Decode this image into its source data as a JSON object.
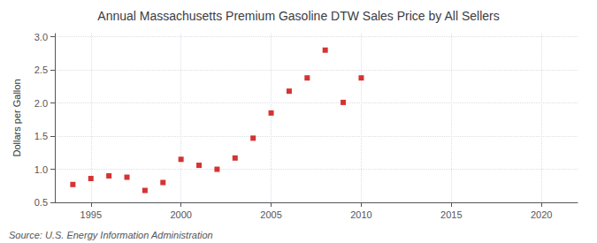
{
  "chart_data": {
    "type": "scatter",
    "title": "Annual Massachusetts Premium Gasoline DTW Sales Price by All Sellers",
    "ylabel": "Dollars per Gallon",
    "annotations": [
      "Source: U.S. Energy Information Administration"
    ],
    "x": [
      1994,
      1995,
      1996,
      1997,
      1998,
      1999,
      2000,
      2001,
      2002,
      2003,
      2004,
      2005,
      2006,
      2007,
      2008,
      2009,
      2010
    ],
    "values": [
      0.77,
      0.86,
      0.9,
      0.88,
      0.68,
      0.8,
      1.15,
      1.06,
      1.0,
      1.17,
      1.47,
      1.85,
      2.18,
      2.38,
      2.8,
      2.01,
      2.38
    ],
    "color": "#cc0000",
    "marker": "square",
    "xlim": [
      1993,
      2022
    ],
    "xticks": [
      1995,
      2000,
      2005,
      2010,
      2015,
      2020
    ],
    "ylim": [
      0.5,
      3.05
    ],
    "yticks": [
      0.5,
      {
        "value": 1.0,
        "label": "1.0"
      },
      1.5,
      {
        "value": 2.0,
        "label": "2.0"
      },
      2.5,
      {
        "value": 3.0,
        "label": "3.0"
      }
    ],
    "grid": true
  }
}
